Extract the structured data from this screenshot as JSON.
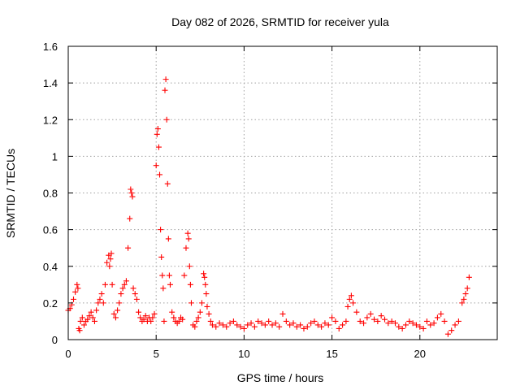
{
  "chart_data": {
    "type": "scatter",
    "title": "Day 082 of 2026, SRMTID for receiver yula",
    "xlabel": "GPS time / hours",
    "ylabel": "SRMTID / TECUs",
    "xlim": [
      0,
      24.4
    ],
    "ylim": [
      0,
      1.6
    ],
    "xticks": [
      0,
      5,
      10,
      15,
      20
    ],
    "xtick_labels": [
      "0",
      "5",
      "10",
      "15",
      "20"
    ],
    "yticks": [
      0,
      0.2,
      0.4,
      0.6,
      0.8,
      1.0,
      1.2,
      1.4,
      1.6
    ],
    "ytick_labels": [
      "0",
      "0.2",
      "0.4",
      "0.6",
      "0.8",
      "1",
      "1.2",
      "1.4",
      "1.6"
    ],
    "grid": true,
    "marker": "plus",
    "color": "#ff0000",
    "series": [
      {
        "name": "SRMTID",
        "x": [
          0.0,
          0.1,
          0.2,
          0.3,
          0.4,
          0.5,
          0.55,
          0.6,
          0.65,
          0.7,
          0.8,
          0.9,
          1.0,
          1.1,
          1.2,
          1.3,
          1.4,
          1.5,
          1.6,
          1.7,
          1.8,
          1.9,
          2.0,
          2.1,
          2.2,
          2.3,
          2.35,
          2.4,
          2.45,
          2.5,
          2.6,
          2.7,
          2.8,
          2.9,
          3.0,
          3.1,
          3.2,
          3.3,
          3.4,
          3.5,
          3.55,
          3.6,
          3.65,
          3.7,
          3.8,
          3.9,
          4.0,
          4.1,
          4.2,
          4.3,
          4.4,
          4.5,
          4.6,
          4.7,
          4.8,
          4.9,
          5.0,
          5.05,
          5.1,
          5.15,
          5.2,
          5.25,
          5.3,
          5.35,
          5.4,
          5.45,
          5.5,
          5.55,
          5.6,
          5.65,
          5.7,
          5.75,
          5.8,
          5.9,
          6.0,
          6.1,
          6.2,
          6.3,
          6.4,
          6.5,
          6.6,
          6.7,
          6.8,
          6.85,
          6.9,
          6.95,
          7.0,
          7.1,
          7.2,
          7.3,
          7.4,
          7.5,
          7.6,
          7.7,
          7.75,
          7.8,
          7.85,
          7.9,
          8.0,
          8.1,
          8.2,
          8.4,
          8.6,
          8.8,
          9.0,
          9.2,
          9.4,
          9.6,
          9.8,
          10.0,
          10.2,
          10.4,
          10.6,
          10.8,
          11.0,
          11.2,
          11.4,
          11.6,
          11.8,
          12.0,
          12.2,
          12.4,
          12.6,
          12.8,
          13.0,
          13.2,
          13.4,
          13.6,
          13.8,
          14.0,
          14.2,
          14.4,
          14.6,
          14.8,
          15.0,
          15.2,
          15.4,
          15.6,
          15.8,
          15.9,
          16.0,
          16.1,
          16.2,
          16.4,
          16.6,
          16.8,
          17.0,
          17.2,
          17.4,
          17.6,
          17.8,
          18.0,
          18.2,
          18.4,
          18.6,
          18.8,
          19.0,
          19.2,
          19.4,
          19.6,
          19.8,
          20.0,
          20.2,
          20.4,
          20.6,
          20.8,
          21.0,
          21.2,
          21.4,
          21.6,
          21.8,
          22.0,
          22.2,
          22.4,
          22.5,
          22.6,
          22.7,
          22.8
        ],
        "y": [
          0.16,
          0.17,
          0.19,
          0.22,
          0.26,
          0.3,
          0.28,
          0.06,
          0.05,
          0.1,
          0.12,
          0.08,
          0.1,
          0.11,
          0.13,
          0.15,
          0.12,
          0.1,
          0.16,
          0.2,
          0.22,
          0.25,
          0.2,
          0.3,
          0.42,
          0.46,
          0.4,
          0.44,
          0.47,
          0.3,
          0.14,
          0.12,
          0.16,
          0.2,
          0.25,
          0.28,
          0.3,
          0.32,
          0.5,
          0.66,
          0.82,
          0.8,
          0.78,
          0.28,
          0.25,
          0.22,
          0.15,
          0.12,
          0.1,
          0.11,
          0.13,
          0.1,
          0.12,
          0.1,
          0.12,
          0.14,
          0.95,
          1.12,
          1.15,
          1.05,
          0.9,
          0.6,
          0.45,
          0.35,
          0.28,
          0.1,
          1.36,
          1.42,
          1.2,
          0.85,
          0.55,
          0.35,
          0.3,
          0.15,
          0.12,
          0.1,
          0.09,
          0.1,
          0.12,
          0.11,
          0.35,
          0.5,
          0.58,
          0.55,
          0.4,
          0.3,
          0.2,
          0.08,
          0.07,
          0.1,
          0.12,
          0.15,
          0.2,
          0.36,
          0.34,
          0.3,
          0.25,
          0.18,
          0.14,
          0.1,
          0.08,
          0.07,
          0.09,
          0.08,
          0.07,
          0.09,
          0.1,
          0.08,
          0.07,
          0.06,
          0.08,
          0.09,
          0.07,
          0.1,
          0.09,
          0.08,
          0.1,
          0.08,
          0.09,
          0.07,
          0.14,
          0.1,
          0.08,
          0.09,
          0.07,
          0.08,
          0.06,
          0.07,
          0.09,
          0.1,
          0.08,
          0.07,
          0.09,
          0.08,
          0.12,
          0.1,
          0.06,
          0.08,
          0.1,
          0.18,
          0.22,
          0.24,
          0.2,
          0.15,
          0.1,
          0.09,
          0.12,
          0.14,
          0.11,
          0.1,
          0.13,
          0.11,
          0.09,
          0.1,
          0.09,
          0.07,
          0.06,
          0.08,
          0.1,
          0.09,
          0.08,
          0.07,
          0.06,
          0.1,
          0.08,
          0.09,
          0.12,
          0.14,
          0.1,
          0.03,
          0.05,
          0.08,
          0.1,
          0.2,
          0.22,
          0.25,
          0.28,
          0.34
        ]
      }
    ]
  }
}
